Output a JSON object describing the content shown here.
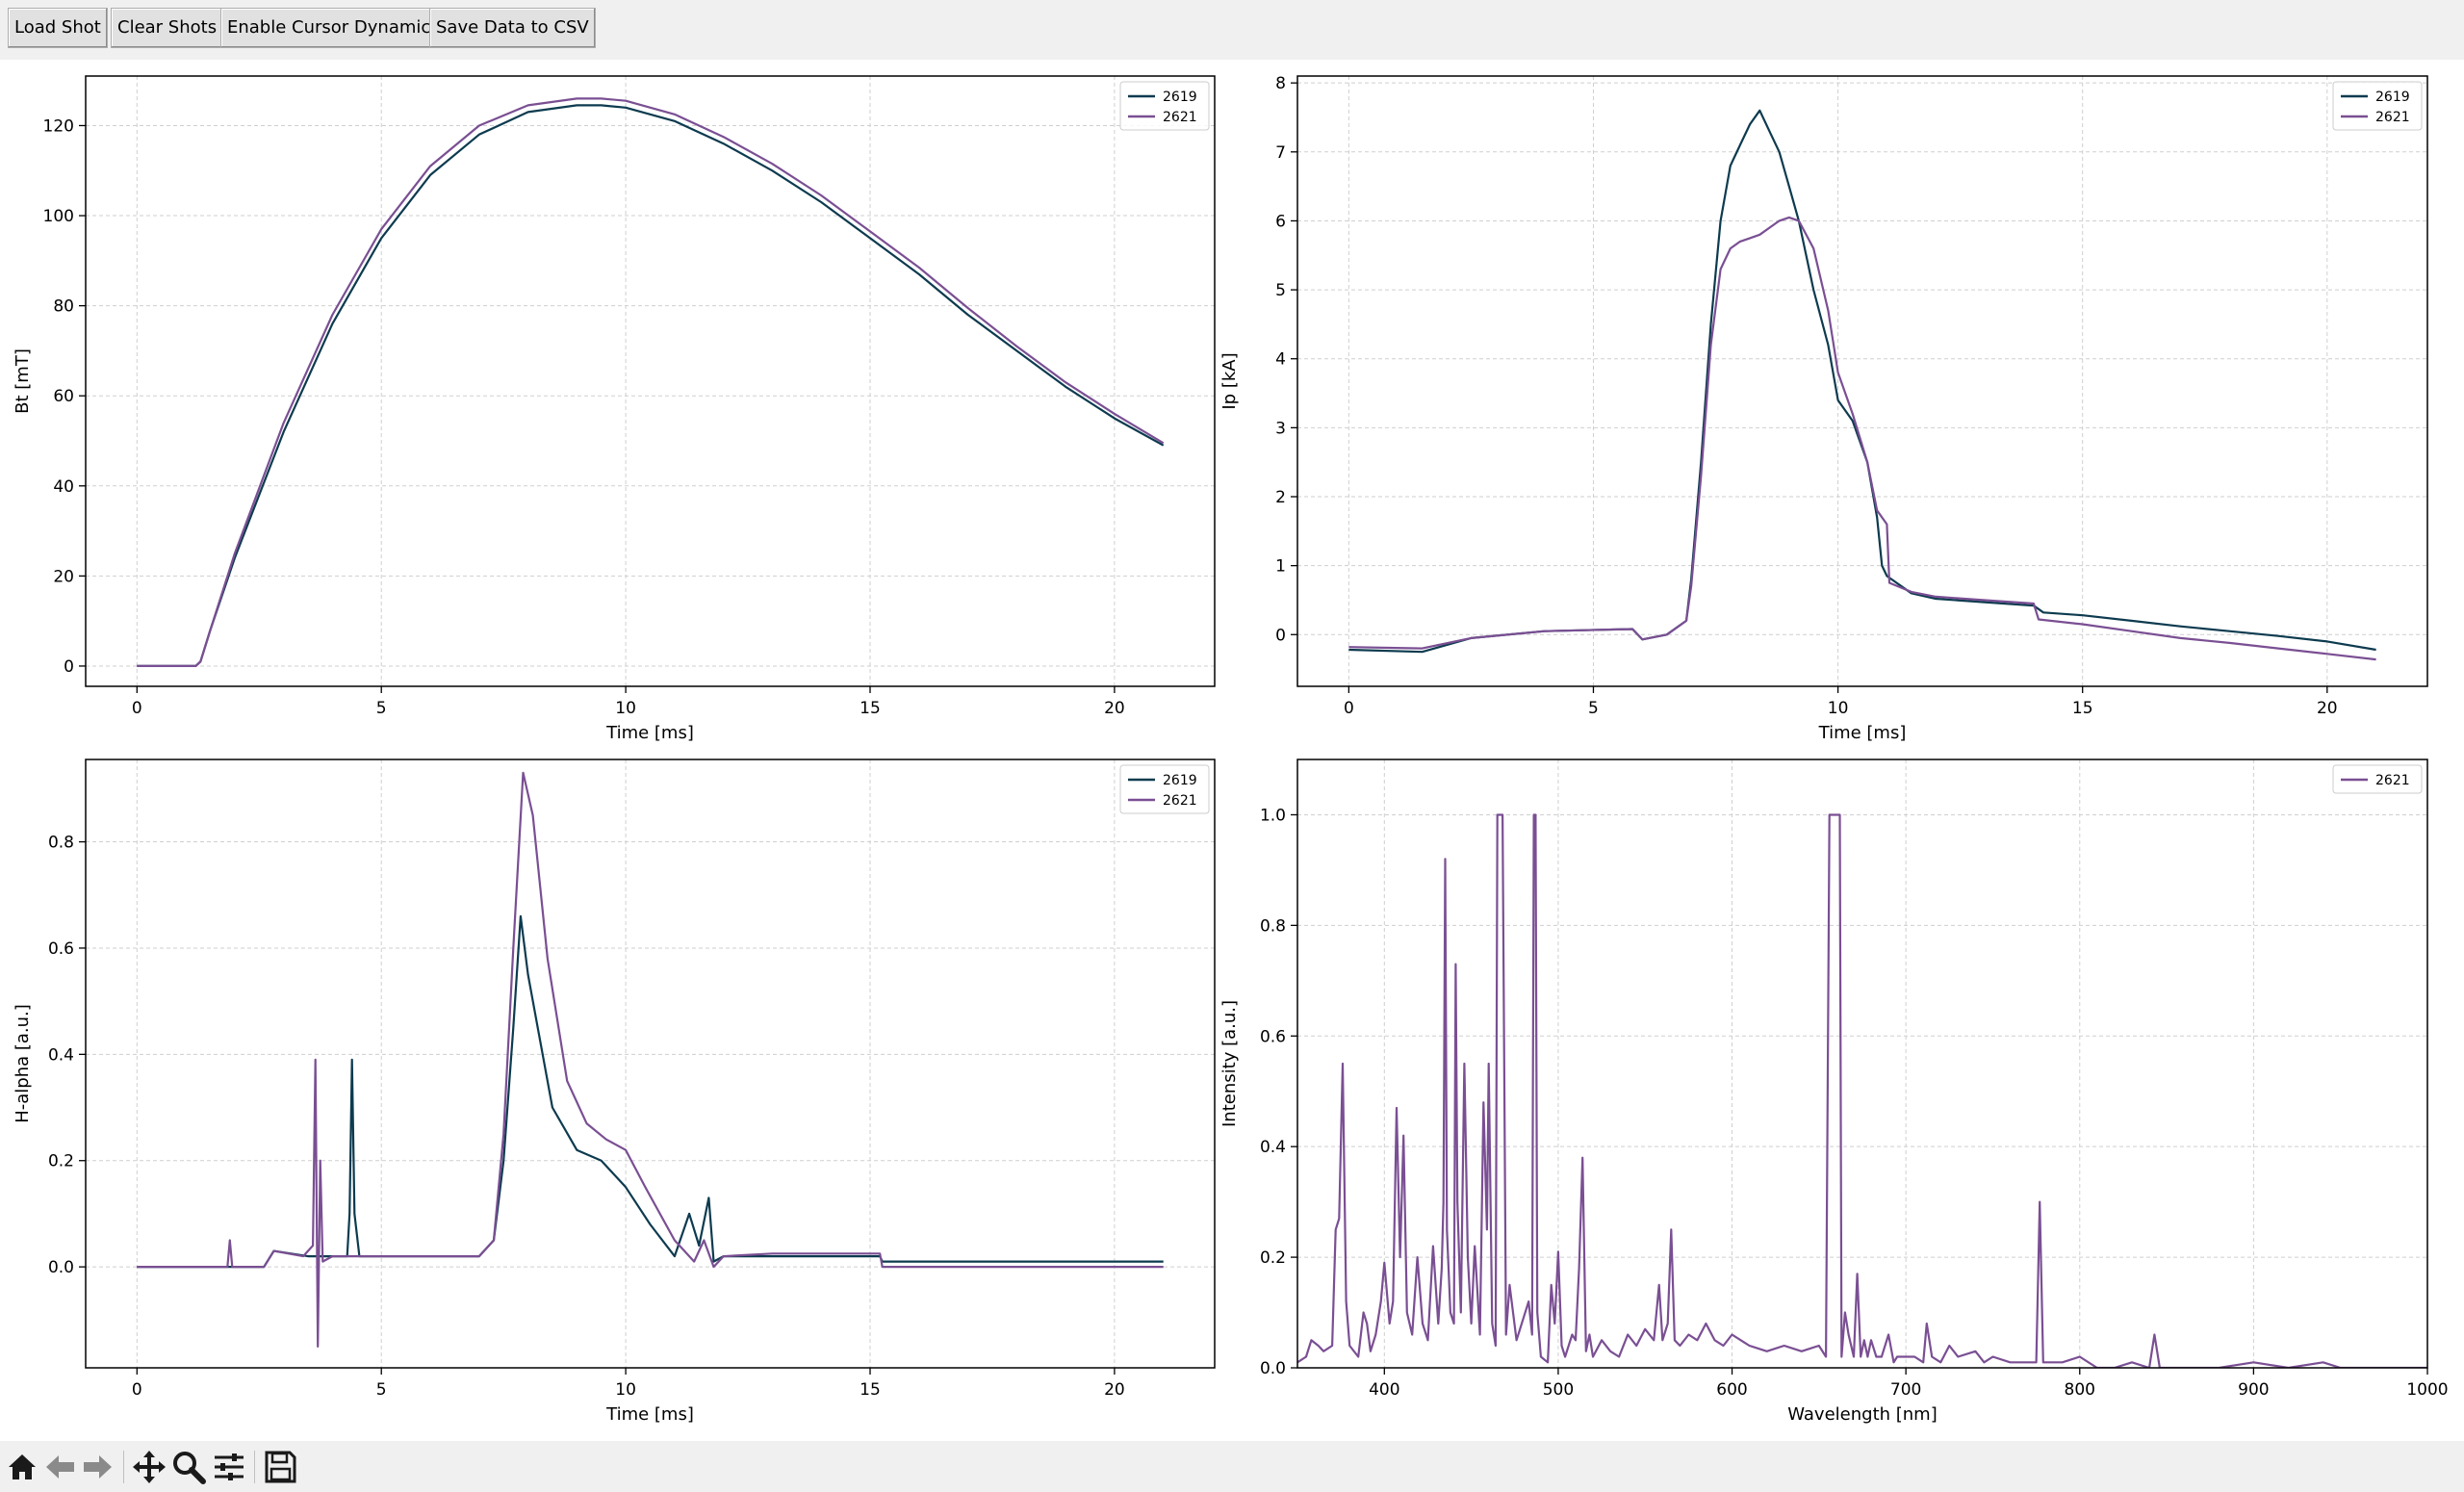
{
  "toolbar": {
    "buttons": [
      "Load Shot",
      "Clear Shots",
      "Enable Cursor Dynamics",
      "Save Data to CSV"
    ]
  },
  "navbar": {
    "icons": [
      "home-icon",
      "back-arrow-icon",
      "forward-arrow-icon",
      "pan-move-icon",
      "zoom-magnifier-icon",
      "configure-subplots-icon",
      "save-floppy-icon"
    ]
  },
  "colors": {
    "shot_2619": "#0d3b4f",
    "shot_2621": "#7a4f93",
    "grid": "#c8c8c8"
  },
  "chart_data": [
    {
      "type": "line",
      "xlabel": "Time [ms]",
      "ylabel": "Bt [mT]",
      "xlim": [
        -1.05,
        22.05
      ],
      "ylim": [
        -4.5,
        131
      ],
      "xticks": [
        0,
        5,
        10,
        15,
        20
      ],
      "yticks": [
        0,
        20,
        40,
        60,
        80,
        100,
        120
      ],
      "grid": true,
      "legend_position": "top-right",
      "series": [
        {
          "name": "2619",
          "color": "#0d3b4f",
          "x": [
            0,
            1.2,
            1.3,
            1.5,
            2,
            3,
            4,
            5,
            6,
            7,
            8,
            9,
            9.5,
            10,
            11,
            12,
            13,
            14,
            15,
            16,
            17,
            18,
            19,
            20,
            21
          ],
          "y": [
            0,
            0,
            1,
            8,
            24,
            52,
            76,
            95,
            109,
            118,
            123,
            124.5,
            124.5,
            124,
            121,
            116,
            110,
            103,
            95,
            87,
            78,
            70,
            62,
            55,
            49
          ]
        },
        {
          "name": "2621",
          "color": "#7a4f93",
          "x": [
            0,
            1.2,
            1.3,
            1.5,
            2,
            3,
            4,
            5,
            6,
            7,
            8,
            9,
            9.5,
            10,
            11,
            12,
            13,
            14,
            15,
            16,
            17,
            18,
            19,
            20,
            21
          ],
          "y": [
            0,
            0,
            1,
            8,
            25,
            54,
            78,
            97,
            111,
            120,
            124.5,
            126,
            126,
            125.5,
            122.5,
            117.5,
            111.5,
            104.5,
            96.5,
            88.5,
            79.5,
            71,
            63,
            56,
            49.5
          ]
        }
      ]
    },
    {
      "type": "line",
      "xlabel": "Time [ms]",
      "ylabel": "Ip [kA]",
      "xlim": [
        -1.05,
        22.05
      ],
      "ylim": [
        -0.75,
        8.1
      ],
      "xticks": [
        0,
        5,
        10,
        15,
        20
      ],
      "yticks": [
        0,
        1,
        2,
        3,
        4,
        5,
        6,
        7,
        8
      ],
      "grid": true,
      "legend_position": "top-right",
      "series": [
        {
          "name": "2619",
          "color": "#0d3b4f",
          "x": [
            0,
            1.5,
            2.5,
            4,
            5.8,
            6,
            6.5,
            6.9,
            7,
            7.2,
            7.4,
            7.6,
            7.8,
            8,
            8.2,
            8.4,
            8.6,
            8.8,
            9,
            9.2,
            9.5,
            9.8,
            10,
            10.3,
            10.6,
            10.8,
            10.9,
            11,
            11.5,
            12,
            13,
            14,
            14.2,
            15,
            16,
            17,
            18,
            19,
            20,
            21
          ],
          "y": [
            -0.22,
            -0.25,
            -0.05,
            0.05,
            0.08,
            -0.07,
            0,
            0.2,
            0.8,
            2.5,
            4.5,
            6.0,
            6.8,
            7.1,
            7.4,
            7.6,
            7.3,
            7.0,
            6.5,
            6.0,
            5.0,
            4.2,
            3.4,
            3.1,
            2.5,
            1.7,
            1.0,
            0.85,
            0.6,
            0.52,
            0.47,
            0.42,
            0.32,
            0.28,
            0.2,
            0.12,
            0.05,
            -0.02,
            -0.1,
            -0.22
          ]
        },
        {
          "name": "2621",
          "color": "#7a4f93",
          "x": [
            0,
            1.5,
            2.5,
            4,
            5.8,
            6,
            6.5,
            6.9,
            7,
            7.2,
            7.4,
            7.6,
            7.8,
            8,
            8.2,
            8.4,
            8.6,
            8.8,
            9,
            9.2,
            9.5,
            9.8,
            10,
            10.3,
            10.6,
            10.8,
            11,
            11.05,
            11.5,
            12,
            13,
            14,
            14.1,
            15,
            16,
            17,
            18,
            19,
            20,
            21
          ],
          "y": [
            -0.18,
            -0.2,
            -0.05,
            0.05,
            0.08,
            -0.07,
            0,
            0.2,
            0.7,
            2.3,
            4.2,
            5.3,
            5.6,
            5.7,
            5.75,
            5.8,
            5.9,
            6.0,
            6.05,
            6.0,
            5.6,
            4.7,
            3.8,
            3.2,
            2.5,
            1.8,
            1.6,
            0.75,
            0.62,
            0.55,
            0.5,
            0.45,
            0.22,
            0.15,
            0.05,
            -0.05,
            -0.12,
            -0.2,
            -0.28,
            -0.36
          ]
        }
      ]
    },
    {
      "type": "line",
      "xlabel": "Time [ms]",
      "ylabel": "H-alpha [a.u.]",
      "xlim": [
        -1.05,
        22.05
      ],
      "ylim": [
        -0.19,
        0.955
      ],
      "xticks": [
        0,
        5,
        10,
        15,
        20
      ],
      "yticks": [
        0.0,
        0.2,
        0.4,
        0.6,
        0.8
      ],
      "grid": true,
      "legend_position": "top-right",
      "series": [
        {
          "name": "2619",
          "color": "#0d3b4f",
          "x": [
            0,
            2.6,
            2.8,
            3.5,
            4,
            4.3,
            4.35,
            4.4,
            4.45,
            4.55,
            5,
            6,
            7,
            7.3,
            7.5,
            7.7,
            7.85,
            8,
            8.2,
            8.5,
            9,
            9.5,
            10,
            10.5,
            11,
            11.3,
            11.5,
            11.7,
            11.8,
            12,
            13,
            15.2,
            15.25,
            21
          ],
          "y": [
            0,
            0,
            0.03,
            0.02,
            0.02,
            0.02,
            0.1,
            0.39,
            0.1,
            0.02,
            0.02,
            0.02,
            0.02,
            0.05,
            0.2,
            0.45,
            0.66,
            0.55,
            0.45,
            0.3,
            0.22,
            0.2,
            0.15,
            0.08,
            0.02,
            0.1,
            0.04,
            0.13,
            0.01,
            0.02,
            0.02,
            0.02,
            0.01,
            0.01
          ]
        },
        {
          "name": "2621",
          "color": "#7a4f93",
          "x": [
            0,
            1.85,
            1.9,
            1.95,
            2.6,
            2.8,
            3.4,
            3.6,
            3.65,
            3.7,
            3.75,
            3.8,
            4,
            5,
            6,
            7,
            7.3,
            7.5,
            7.7,
            7.9,
            8.1,
            8.4,
            8.8,
            9.2,
            9.6,
            10,
            10.4,
            11,
            11.4,
            11.6,
            11.8,
            12,
            13,
            15.2,
            15.25,
            21
          ],
          "y": [
            0,
            0,
            0.05,
            0,
            0,
            0.03,
            0.02,
            0.04,
            0.39,
            -0.15,
            0.2,
            0.01,
            0.02,
            0.02,
            0.02,
            0.02,
            0.05,
            0.25,
            0.6,
            0.93,
            0.85,
            0.58,
            0.35,
            0.27,
            0.24,
            0.22,
            0.15,
            0.05,
            0.01,
            0.05,
            0.0,
            0.02,
            0.025,
            0.025,
            0.0,
            0.0
          ]
        }
      ]
    },
    {
      "type": "line",
      "xlabel": "Wavelength [nm]",
      "ylabel": "Intensity [a.u.]",
      "xlim": [
        350,
        1000
      ],
      "ylim": [
        0,
        1.1
      ],
      "xticks": [
        400,
        500,
        600,
        700,
        800,
        900,
        1000
      ],
      "yticks": [
        0.0,
        0.2,
        0.4,
        0.6,
        0.8,
        1.0
      ],
      "grid": true,
      "legend_position": "top-right",
      "series": [
        {
          "name": "2621",
          "color": "#7a4f93",
          "x": [
            350,
            355,
            358,
            362,
            365,
            370,
            372,
            374,
            376,
            378,
            380,
            385,
            388,
            390,
            392,
            395,
            398,
            400,
            403,
            405,
            407,
            409,
            411,
            413,
            416,
            419,
            422,
            425,
            428,
            431,
            433,
            434,
            435,
            436,
            438,
            440,
            441,
            442,
            444,
            446,
            448,
            450,
            452,
            455,
            457,
            459,
            460,
            462,
            464,
            465,
            467,
            468,
            470,
            472,
            476,
            478,
            483,
            485,
            486,
            487,
            488,
            490,
            494,
            496,
            498,
            500,
            502,
            504,
            508,
            510,
            512,
            514,
            516,
            518,
            520,
            525,
            530,
            535,
            540,
            545,
            550,
            555,
            558,
            560,
            563,
            565,
            567,
            570,
            575,
            580,
            585,
            590,
            595,
            600,
            605,
            610,
            620,
            630,
            640,
            650,
            654,
            656,
            657,
            658,
            662,
            663,
            665,
            667,
            670,
            672,
            674,
            676,
            678,
            680,
            683,
            686,
            690,
            693,
            695,
            700,
            705,
            710,
            712,
            715,
            720,
            725,
            730,
            740,
            745,
            750,
            760,
            770,
            775,
            777,
            779,
            782,
            790,
            800,
            810,
            820,
            830,
            840,
            843,
            846,
            850,
            870,
            880,
            900,
            920,
            940,
            950,
            960,
            980,
            1000
          ],
          "y": [
            0.01,
            0.02,
            0.05,
            0.04,
            0.03,
            0.04,
            0.25,
            0.27,
            0.55,
            0.12,
            0.04,
            0.02,
            0.1,
            0.08,
            0.03,
            0.06,
            0.12,
            0.19,
            0.08,
            0.12,
            0.47,
            0.2,
            0.42,
            0.1,
            0.06,
            0.2,
            0.08,
            0.05,
            0.22,
            0.08,
            0.18,
            0.3,
            0.92,
            0.25,
            0.1,
            0.08,
            0.73,
            0.3,
            0.1,
            0.55,
            0.2,
            0.08,
            0.22,
            0.06,
            0.48,
            0.25,
            0.55,
            0.08,
            0.04,
            1.0,
            1.0,
            1.0,
            0.06,
            0.15,
            0.05,
            0.07,
            0.12,
            0.06,
            1.0,
            1.0,
            0.1,
            0.02,
            0.01,
            0.15,
            0.08,
            0.21,
            0.04,
            0.02,
            0.06,
            0.05,
            0.18,
            0.38,
            0.03,
            0.06,
            0.02,
            0.05,
            0.03,
            0.02,
            0.06,
            0.04,
            0.07,
            0.05,
            0.15,
            0.05,
            0.08,
            0.25,
            0.05,
            0.04,
            0.06,
            0.05,
            0.08,
            0.05,
            0.04,
            0.06,
            0.05,
            0.04,
            0.03,
            0.04,
            0.03,
            0.04,
            0.02,
            1.0,
            1.0,
            1.0,
            1.0,
            0.02,
            0.1,
            0.06,
            0.02,
            0.17,
            0.02,
            0.05,
            0.02,
            0.05,
            0.02,
            0.02,
            0.06,
            0.01,
            0.02,
            0.02,
            0.02,
            0.01,
            0.08,
            0.02,
            0.01,
            0.04,
            0.02,
            0.03,
            0.01,
            0.02,
            0.01,
            0.01,
            0.01,
            0.3,
            0.01,
            0.01,
            0.01,
            0.02,
            0.0,
            0.0,
            0.01,
            0.0,
            0.06,
            0.0,
            0.0,
            0.0,
            0.0,
            0.01,
            0.0,
            0.01,
            0.0,
            0.0,
            0.0,
            0.0
          ]
        }
      ]
    }
  ]
}
